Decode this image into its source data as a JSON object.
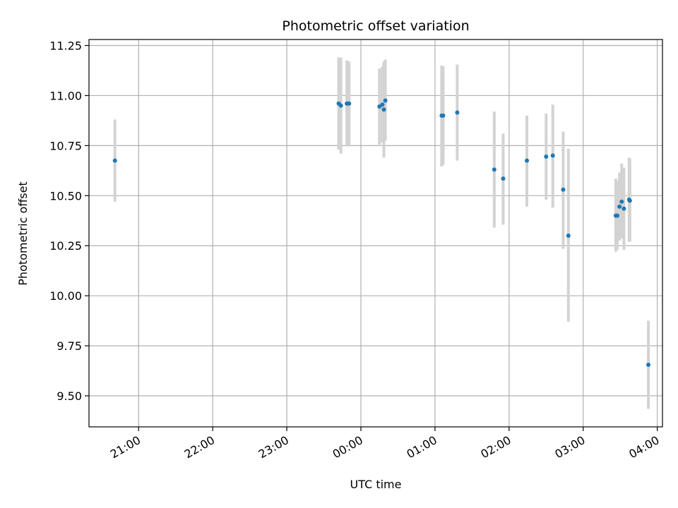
{
  "chart_data": {
    "type": "scatter",
    "title": "Photometric offset variation",
    "xlabel": "UTC time",
    "ylabel": "Photometric offset",
    "x_unit": "hours relative to 00:00 UTC",
    "xlim": [
      -3.67,
      4.07
    ],
    "ylim": [
      9.345,
      11.28
    ],
    "x_ticks": [
      {
        "value": -3,
        "label": "21:00"
      },
      {
        "value": -2,
        "label": "22:00"
      },
      {
        "value": -1,
        "label": "23:00"
      },
      {
        "value": 0,
        "label": "00:00"
      },
      {
        "value": 1,
        "label": "01:00"
      },
      {
        "value": 2,
        "label": "02:00"
      },
      {
        "value": 3,
        "label": "03:00"
      },
      {
        "value": 4,
        "label": "04:00"
      }
    ],
    "y_ticks": [
      {
        "value": 9.5,
        "label": "9.50"
      },
      {
        "value": 9.75,
        "label": "9.75"
      },
      {
        "value": 10.0,
        "label": "10.00"
      },
      {
        "value": 10.25,
        "label": "10.25"
      },
      {
        "value": 10.5,
        "label": "10.50"
      },
      {
        "value": 10.75,
        "label": "10.75"
      },
      {
        "value": 11.0,
        "label": "11.00"
      },
      {
        "value": 11.25,
        "label": "11.25"
      }
    ],
    "grid": true,
    "colors": {
      "point": "#1f77b4",
      "errorbar": "#d3d3d3",
      "grid": "#b0b0b0"
    },
    "points": [
      {
        "x": -3.32,
        "y": 10.675,
        "err_low": 10.47,
        "err_high": 10.88
      },
      {
        "x": -0.3,
        "y": 10.96,
        "err_low": 10.73,
        "err_high": 11.19
      },
      {
        "x": -0.27,
        "y": 10.95,
        "err_low": 10.71,
        "err_high": 11.19
      },
      {
        "x": -0.19,
        "y": 10.96,
        "err_low": 10.745,
        "err_high": 11.175
      },
      {
        "x": -0.16,
        "y": 10.96,
        "err_low": 10.75,
        "err_high": 11.17
      },
      {
        "x": 0.25,
        "y": 10.945,
        "err_low": 10.755,
        "err_high": 11.135
      },
      {
        "x": 0.29,
        "y": 10.955,
        "err_low": 10.765,
        "err_high": 11.145
      },
      {
        "x": 0.31,
        "y": 10.93,
        "err_low": 10.69,
        "err_high": 11.17
      },
      {
        "x": 0.33,
        "y": 10.975,
        "err_low": 10.775,
        "err_high": 11.18
      },
      {
        "x": 1.09,
        "y": 10.9,
        "err_low": 10.645,
        "err_high": 11.15
      },
      {
        "x": 1.11,
        "y": 10.9,
        "err_low": 10.655,
        "err_high": 11.145
      },
      {
        "x": 1.3,
        "y": 10.915,
        "err_low": 10.675,
        "err_high": 11.155
      },
      {
        "x": 1.8,
        "y": 10.63,
        "err_low": 10.34,
        "err_high": 10.92
      },
      {
        "x": 1.92,
        "y": 10.585,
        "err_low": 10.355,
        "err_high": 10.81
      },
      {
        "x": 2.24,
        "y": 10.675,
        "err_low": 10.445,
        "err_high": 10.9
      },
      {
        "x": 2.5,
        "y": 10.695,
        "err_low": 10.48,
        "err_high": 10.91
      },
      {
        "x": 2.59,
        "y": 10.7,
        "err_low": 10.44,
        "err_high": 10.955
      },
      {
        "x": 2.73,
        "y": 10.53,
        "err_low": 10.235,
        "err_high": 10.82
      },
      {
        "x": 2.8,
        "y": 10.3,
        "err_low": 9.87,
        "err_high": 10.735
      },
      {
        "x": 3.44,
        "y": 10.4,
        "err_low": 10.22,
        "err_high": 10.585
      },
      {
        "x": 3.46,
        "y": 10.4,
        "err_low": 10.23,
        "err_high": 10.575
      },
      {
        "x": 3.49,
        "y": 10.445,
        "err_low": 10.275,
        "err_high": 10.615
      },
      {
        "x": 3.52,
        "y": 10.47,
        "err_low": 10.285,
        "err_high": 10.66
      },
      {
        "x": 3.55,
        "y": 10.435,
        "err_low": 10.23,
        "err_high": 10.64
      },
      {
        "x": 3.62,
        "y": 10.48,
        "err_low": 10.27,
        "err_high": 10.69
      },
      {
        "x": 3.63,
        "y": 10.475,
        "err_low": 10.27,
        "err_high": 10.685
      },
      {
        "x": 3.88,
        "y": 9.655,
        "err_low": 9.435,
        "err_high": 9.875
      }
    ]
  }
}
